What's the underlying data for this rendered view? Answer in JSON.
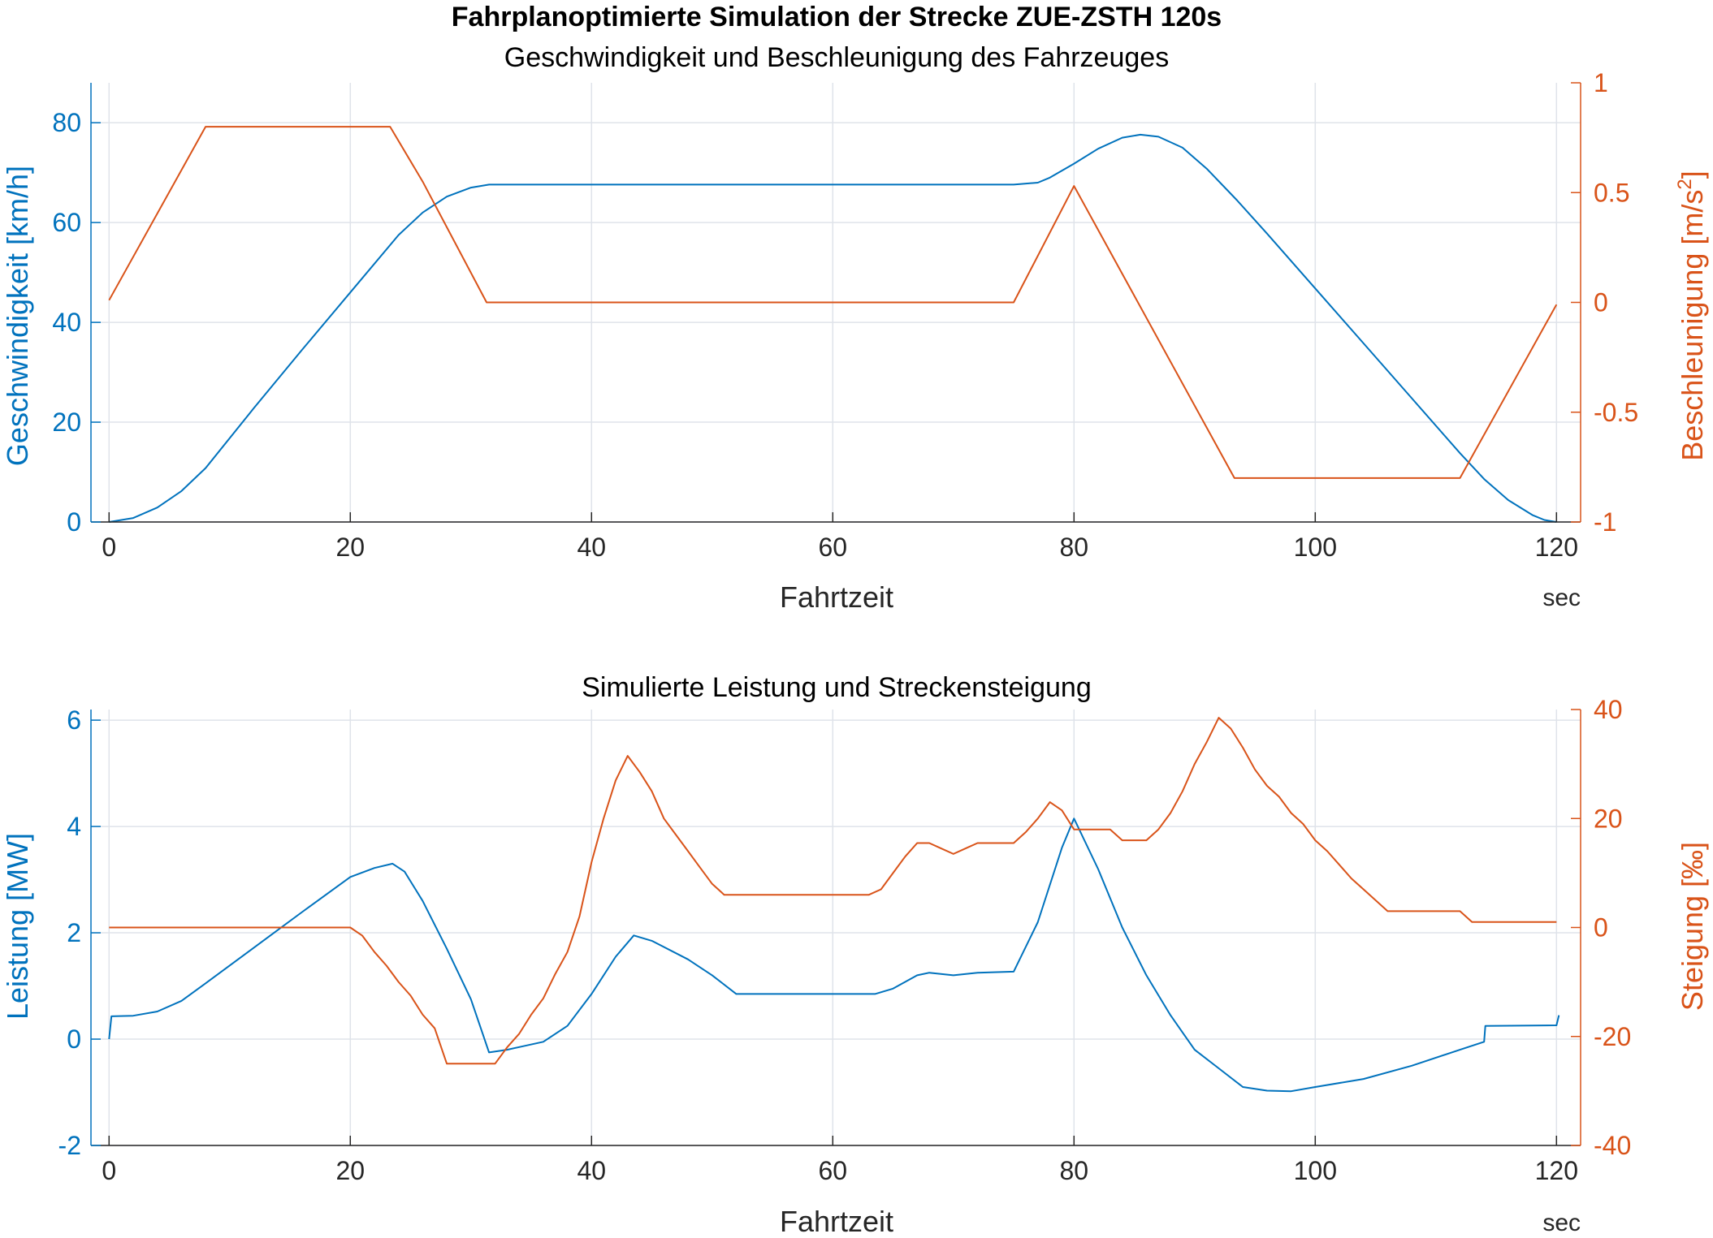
{
  "figure": {
    "suptitle": "Fahrplanoptimierte Simulation der Strecke ZUE-ZSTH 120s"
  },
  "colors": {
    "left": "#0072BD",
    "right": "#D95319",
    "grid": "#dfe3ea",
    "axis": "#262626"
  },
  "chart_data": [
    {
      "type": "line",
      "title": "Geschwindigkeit und Beschleunigung des Fahrzeuges",
      "xlabel": "Fahrtzeit",
      "xunit": "sec",
      "xlim": [
        -1.5,
        122
      ],
      "xticks": [
        0,
        20,
        40,
        60,
        80,
        100,
        120
      ],
      "grid": true,
      "left_axis": {
        "ylabel": "Geschwindigkeit [km/h]",
        "ylim": [
          0,
          88
        ],
        "yticks": [
          0,
          20,
          40,
          60,
          80
        ],
        "ytick_labels": [
          "0",
          "20",
          "40",
          "60",
          "80"
        ]
      },
      "right_axis": {
        "ylabel_main": "Beschleunigung [m/s",
        "ylabel_sup": "2",
        "ylabel_end": "]",
        "ylim": [
          -1,
          1
        ],
        "yticks": [
          -1,
          -0.5,
          0,
          0.5,
          1
        ],
        "ytick_labels": [
          "-1",
          "-0.5",
          "0",
          "0.5",
          "1"
        ]
      },
      "series": [
        {
          "axis": "left",
          "values": [
            [
              0,
              0
            ],
            [
              2,
              0.8
            ],
            [
              4,
              2.9
            ],
            [
              6,
              6.2
            ],
            [
              8,
              10.8
            ],
            [
              12,
              22.8
            ],
            [
              16,
              34.5
            ],
            [
              20,
              46.0
            ],
            [
              24,
              57.5
            ],
            [
              26,
              62.0
            ],
            [
              28,
              65.2
            ],
            [
              30,
              67.0
            ],
            [
              31.5,
              67.6
            ],
            [
              35,
              67.6
            ],
            [
              50,
              67.6
            ],
            [
              60,
              67.6
            ],
            [
              70,
              67.6
            ],
            [
              75,
              67.6
            ],
            [
              77,
              68.0
            ],
            [
              78,
              69.0
            ],
            [
              80,
              71.8
            ],
            [
              82,
              74.8
            ],
            [
              84,
              77.0
            ],
            [
              85.5,
              77.6
            ],
            [
              87,
              77.2
            ],
            [
              89,
              75.0
            ],
            [
              91,
              70.8
            ],
            [
              93.5,
              64.5
            ],
            [
              96,
              57.8
            ],
            [
              100,
              46.8
            ],
            [
              104,
              35.8
            ],
            [
              108,
              24.8
            ],
            [
              112,
              13.8
            ],
            [
              114,
              8.6
            ],
            [
              116,
              4.4
            ],
            [
              118,
              1.4
            ],
            [
              119,
              0.4
            ],
            [
              120,
              0
            ]
          ]
        },
        {
          "axis": "right",
          "values": [
            [
              0,
              0.01
            ],
            [
              8,
              0.8
            ],
            [
              23.3,
              0.8
            ],
            [
              26,
              0.55
            ],
            [
              31.3,
              0
            ],
            [
              75,
              0
            ],
            [
              80,
              0.53
            ],
            [
              93.3,
              -0.8
            ],
            [
              112,
              -0.8
            ],
            [
              120,
              -0.01
            ]
          ]
        }
      ]
    },
    {
      "type": "line",
      "title": "Simulierte Leistung und Streckensteigung",
      "xlabel": "Fahrtzeit",
      "xunit": "sec",
      "xlim": [
        -1.5,
        122
      ],
      "xticks": [
        0,
        20,
        40,
        60,
        80,
        100,
        120
      ],
      "grid": true,
      "left_axis": {
        "ylabel": "Leistung [MW]",
        "ylim": [
          -2,
          6.2
        ],
        "yticks": [
          -2,
          0,
          2,
          4,
          6
        ],
        "ytick_labels": [
          "-2",
          "0",
          "2",
          "4",
          "6"
        ]
      },
      "right_axis": {
        "ylabel_main": "Steigung [‰]",
        "ylabel_sup": "",
        "ylabel_end": "",
        "ylim": [
          -40,
          40
        ],
        "yticks": [
          -40,
          -20,
          0,
          20,
          40
        ],
        "ytick_labels": [
          "-40",
          "-20",
          "0",
          "20",
          "40"
        ]
      },
      "series": [
        {
          "axis": "left",
          "values": [
            [
              0,
              0
            ],
            [
              0.2,
              0.43
            ],
            [
              2,
              0.44
            ],
            [
              4,
              0.52
            ],
            [
              6,
              0.72
            ],
            [
              8,
              1.05
            ],
            [
              12,
              1.72
            ],
            [
              16,
              2.39
            ],
            [
              20,
              3.05
            ],
            [
              22,
              3.22
            ],
            [
              23.5,
              3.3
            ],
            [
              24.5,
              3.15
            ],
            [
              26,
              2.6
            ],
            [
              28,
              1.7
            ],
            [
              30,
              0.75
            ],
            [
              31.5,
              -0.25
            ],
            [
              33,
              -0.2
            ],
            [
              36,
              -0.05
            ],
            [
              38,
              0.25
            ],
            [
              40,
              0.85
            ],
            [
              42,
              1.55
            ],
            [
              43.5,
              1.95
            ],
            [
              45,
              1.85
            ],
            [
              48,
              1.5
            ],
            [
              50,
              1.2
            ],
            [
              52,
              0.85
            ],
            [
              56,
              0.85
            ],
            [
              60,
              0.85
            ],
            [
              63.5,
              0.85
            ],
            [
              65,
              0.95
            ],
            [
              67,
              1.2
            ],
            [
              68,
              1.25
            ],
            [
              70,
              1.2
            ],
            [
              72,
              1.25
            ],
            [
              75,
              1.27
            ],
            [
              77,
              2.2
            ],
            [
              79,
              3.6
            ],
            [
              80,
              4.15
            ],
            [
              82,
              3.2
            ],
            [
              84,
              2.1
            ],
            [
              86,
              1.2
            ],
            [
              88,
              0.45
            ],
            [
              90,
              -0.2
            ],
            [
              92,
              -0.55
            ],
            [
              94,
              -0.9
            ],
            [
              96,
              -0.97
            ],
            [
              98,
              -0.98
            ],
            [
              100,
              -0.9
            ],
            [
              104,
              -0.75
            ],
            [
              108,
              -0.5
            ],
            [
              112,
              -0.2
            ],
            [
              114,
              -0.05
            ],
            [
              114.1,
              0.25
            ],
            [
              120,
              0.26
            ],
            [
              120.2,
              0.45
            ]
          ]
        },
        {
          "axis": "right",
          "values": [
            [
              0,
              0
            ],
            [
              20,
              0
            ],
            [
              21,
              -1.5
            ],
            [
              22,
              -4.5
            ],
            [
              23,
              -7
            ],
            [
              24,
              -10
            ],
            [
              25,
              -12.5
            ],
            [
              26,
              -16
            ],
            [
              27,
              -18.5
            ],
            [
              28,
              -25
            ],
            [
              32,
              -25
            ],
            [
              33,
              -22
            ],
            [
              34,
              -19.5
            ],
            [
              35,
              -16
            ],
            [
              36,
              -13
            ],
            [
              37,
              -8.5
            ],
            [
              38,
              -4.5
            ],
            [
              39,
              2
            ],
            [
              40,
              12
            ],
            [
              41,
              20
            ],
            [
              42,
              27
            ],
            [
              43,
              31.5
            ],
            [
              44,
              28.5
            ],
            [
              45,
              25
            ],
            [
              46,
              20
            ],
            [
              47,
              17
            ],
            [
              48,
              14
            ],
            [
              49,
              11
            ],
            [
              50,
              8
            ],
            [
              51,
              6
            ],
            [
              52,
              6
            ],
            [
              63,
              6
            ],
            [
              64,
              7
            ],
            [
              65,
              10
            ],
            [
              66,
              13
            ],
            [
              67,
              15.5
            ],
            [
              68,
              15.5
            ],
            [
              69,
              14.5
            ],
            [
              70,
              13.5
            ],
            [
              71,
              14.5
            ],
            [
              72,
              15.5
            ],
            [
              75,
              15.5
            ],
            [
              76,
              17.5
            ],
            [
              77,
              20
            ],
            [
              78,
              23
            ],
            [
              79,
              21.5
            ],
            [
              80,
              18
            ],
            [
              83,
              18
            ],
            [
              84,
              16
            ],
            [
              86,
              16
            ],
            [
              87,
              18
            ],
            [
              88,
              21
            ],
            [
              89,
              25
            ],
            [
              90,
              30
            ],
            [
              91,
              34
            ],
            [
              92,
              38.5
            ],
            [
              93,
              36.5
            ],
            [
              94,
              33
            ],
            [
              95,
              29
            ],
            [
              96,
              26
            ],
            [
              97,
              24
            ],
            [
              98,
              21
            ],
            [
              99,
              19
            ],
            [
              100,
              16
            ],
            [
              101,
              14
            ],
            [
              102,
              11.5
            ],
            [
              103,
              9
            ],
            [
              104,
              7
            ],
            [
              105,
              5
            ],
            [
              106,
              3
            ],
            [
              108,
              3
            ],
            [
              112,
              3
            ],
            [
              113,
              1
            ],
            [
              118,
              1
            ],
            [
              120,
              1
            ]
          ]
        }
      ]
    }
  ]
}
